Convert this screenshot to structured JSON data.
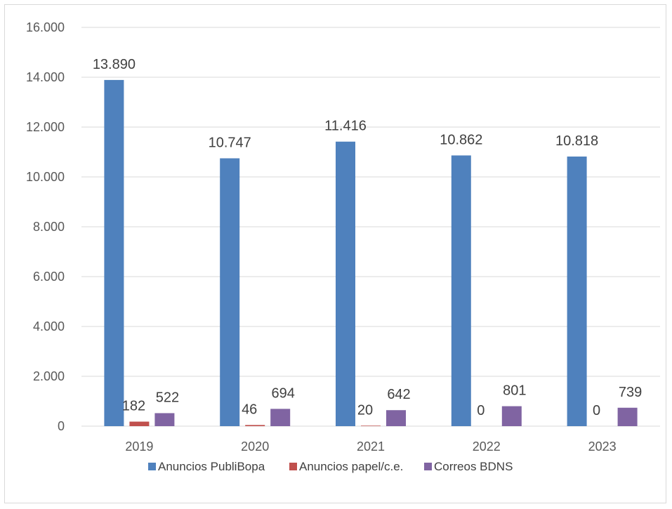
{
  "chart_data": {
    "type": "bar",
    "title": "",
    "xlabel": "",
    "ylabel": "",
    "categories": [
      "2019",
      "2020",
      "2021",
      "2022",
      "2023"
    ],
    "series": [
      {
        "name": "Anuncios PubliBopa",
        "values": [
          13890,
          10747,
          11416,
          10862,
          10818
        ],
        "labels": [
          "13.890",
          "10.747",
          "11.416",
          "10.862",
          "10.818"
        ],
        "color": "#4f81bd"
      },
      {
        "name": "Anuncios papel/c.e.",
        "values": [
          182,
          46,
          20,
          0,
          0
        ],
        "labels": [
          "182",
          "46",
          "20",
          "0",
          "0"
        ],
        "color": "#c0504d"
      },
      {
        "name": "Correos BDNS",
        "values": [
          522,
          694,
          642,
          801,
          739
        ],
        "labels": [
          "522",
          "694",
          "642",
          "801",
          "739"
        ],
        "color": "#8064a2"
      }
    ],
    "ylim": [
      0,
      16000
    ],
    "yticks": [
      0,
      2000,
      4000,
      6000,
      8000,
      10000,
      12000,
      14000,
      16000
    ],
    "ytick_labels": [
      "0",
      "2.000",
      "4.000",
      "6.000",
      "8.000",
      "10.000",
      "12.000",
      "14.000",
      "16.000"
    ],
    "grid": true,
    "legend_position": "bottom"
  }
}
